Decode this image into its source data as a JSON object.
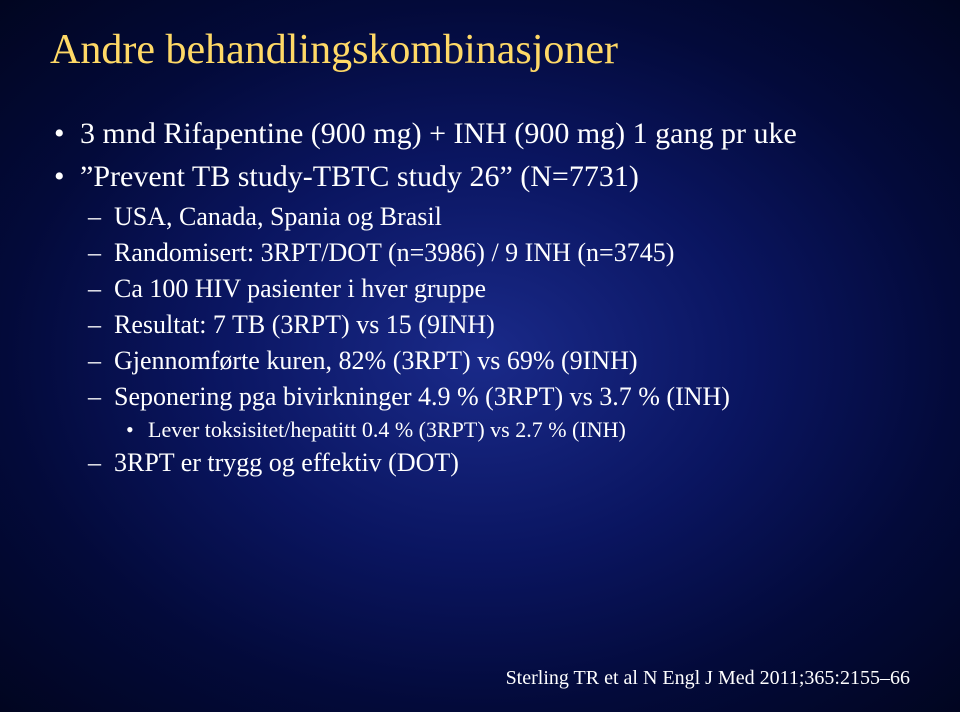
{
  "title": "Andre behandlingskombinasjoner",
  "bullets": {
    "b1": "3 mnd Rifapentine (900 mg) + INH (900 mg)  1 gang pr uke",
    "b2_pre": "Prevent TB study-TBTC study 26",
    "b2_post": " (N=7731)",
    "s1": "USA, Canada, Spania og Brasil",
    "s2": "Randomisert: 3RPT/DOT (n=3986) / 9 INH (n=3745)",
    "s3": "Ca 100 HIV  pasienter i hver gruppe",
    "s4": "Resultat: 7 TB (3RPT) vs 15 (9INH)",
    "s5": "Gjennomførte kuren, 82% (3RPT) vs 69% (9INH)",
    "s6": "Seponering pga bivirkninger 4.9 % (3RPT) vs 3.7 % (INH)",
    "s6a": "Lever toksisitet/hepatitt  0.4 % (3RPT) vs 2.7 % (INH)",
    "s7": "3RPT er trygg og effektiv (DOT)"
  },
  "quotes": {
    "open": "”",
    "close": "”"
  },
  "citation": "Sterling TR et al N Engl J Med 2011;365:2155–66",
  "style": {
    "title_color": "#ffd966",
    "text_color": "#ffffff",
    "bg_center": "#1a2a8a",
    "bg_edge": "#010520",
    "title_fontsize": 42,
    "l1_fontsize": 30,
    "l2_fontsize": 26,
    "l3_fontsize": 22,
    "citation_fontsize": 20,
    "font_family": "Times New Roman"
  }
}
